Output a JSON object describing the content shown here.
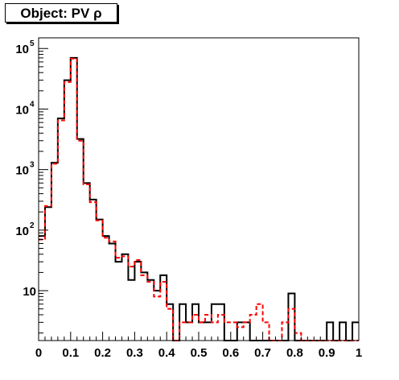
{
  "title": "Object: PV ρ",
  "chart_data": {
    "type": "histogram",
    "title": "Object: PV ρ",
    "xlabel": "",
    "ylabel": "",
    "xlim": [
      0,
      1
    ],
    "ylim": [
      1.5,
      150000
    ],
    "yscale": "log",
    "bin_width": 0.02,
    "x_ticks": [
      {
        "v": 0,
        "label": "0"
      },
      {
        "v": 0.1,
        "label": "0.1"
      },
      {
        "v": 0.2,
        "label": "0.2"
      },
      {
        "v": 0.3,
        "label": "0.3"
      },
      {
        "v": 0.4,
        "label": "0.4"
      },
      {
        "v": 0.5,
        "label": "0.5"
      },
      {
        "v": 0.6,
        "label": "0.6"
      },
      {
        "v": 0.7,
        "label": "0.7"
      },
      {
        "v": 0.8,
        "label": "0.8"
      },
      {
        "v": 0.9,
        "label": "0.9"
      },
      {
        "v": 1,
        "label": "1"
      }
    ],
    "y_ticks": [
      {
        "v": 10,
        "base": "10",
        "exp": ""
      },
      {
        "v": 100,
        "base": "10",
        "exp": "2"
      },
      {
        "v": 1000,
        "base": "10",
        "exp": "3"
      },
      {
        "v": 10000,
        "base": "10",
        "exp": "4"
      },
      {
        "v": 100000,
        "base": "10",
        "exp": "5"
      }
    ],
    "series": [
      {
        "color": "#000000",
        "style": "solid",
        "values": [
          80,
          240,
          1300,
          7000,
          30000,
          70000,
          3200,
          600,
          320,
          150,
          80,
          60,
          30,
          40,
          15,
          30,
          20,
          15,
          10,
          18,
          6,
          1,
          6,
          3,
          6,
          3,
          3,
          6,
          6,
          1,
          1,
          3,
          3,
          1,
          1,
          1,
          1,
          1,
          1,
          9,
          1,
          1,
          1,
          1,
          1,
          3,
          1,
          3,
          1,
          3
        ]
      },
      {
        "color": "#ff0000",
        "style": "dashed",
        "values": [
          70,
          250,
          1250,
          6500,
          28000,
          68000,
          3000,
          570,
          290,
          145,
          75,
          65,
          35,
          37,
          25,
          32,
          18,
          14,
          8,
          14,
          5,
          1.5,
          3,
          3,
          4,
          3,
          4,
          3,
          4,
          3,
          3,
          2.5,
          3,
          4,
          6,
          3,
          1,
          1,
          3,
          5,
          2,
          1,
          1,
          1,
          1,
          1,
          1,
          1,
          1,
          1
        ]
      }
    ]
  }
}
